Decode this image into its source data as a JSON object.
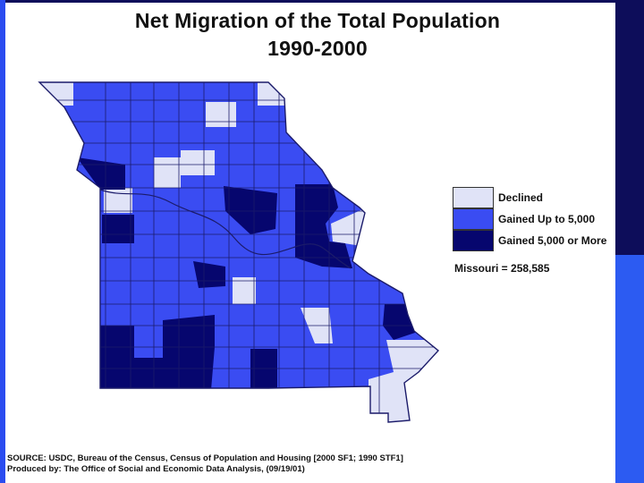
{
  "title": "Net Migration of the Total Population",
  "subtitle": "1990-2000",
  "legend": [
    {
      "label": "Declined",
      "color": "#e0e3f7"
    },
    {
      "label": "Gained Up to 5,000",
      "color": "#3a4cf2"
    },
    {
      "label": "Gained 5,000 or More",
      "color": "#06066e"
    }
  ],
  "total_text": "Missouri = 258,585",
  "source_line": "SOURCE:  USDC, Bureau of the Census, Census of Population and Housing [2000 SF1; 1990 STF1]",
  "produced_line": "Produced by:  The Office of Social and Economic Data Analysis, (09/19/01)",
  "colors": {
    "frame_blue": "#2a4cf0",
    "frame_dark": "#0d0d5a",
    "county_border": "#1b1b6a"
  }
}
